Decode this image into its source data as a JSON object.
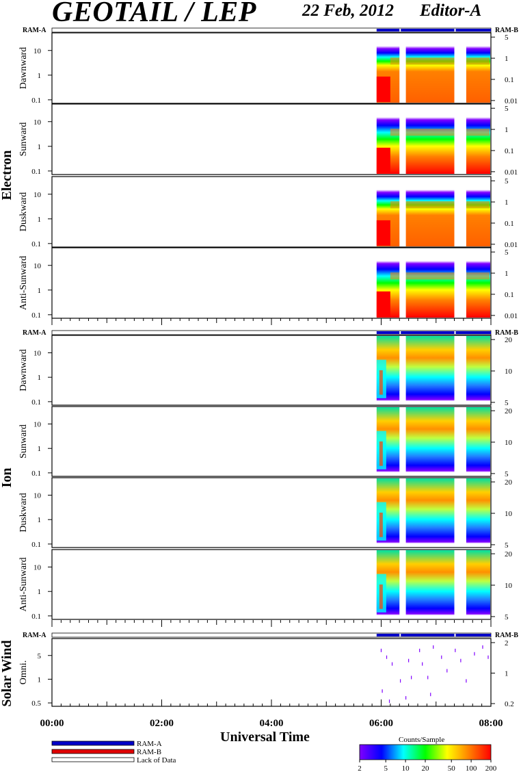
{
  "header": {
    "title": "GEOTAIL / LEP",
    "date": "22 Feb, 2012",
    "editor": "Editor-A"
  },
  "x_axis": {
    "label": "Universal Time",
    "ticks": [
      "00:00",
      "02:00",
      "04:00",
      "06:00",
      "08:00"
    ]
  },
  "mode_bar": {
    "left_label": "RAM-A",
    "right_label": "RAM-B"
  },
  "groups": [
    {
      "name": "Electron",
      "panels": [
        "Dawnward",
        "Sunward",
        "Duskward",
        "Anti-Sunward"
      ],
      "left_ticks": [
        "10",
        "1",
        "0.1"
      ],
      "right_ticks": [
        "5",
        "1",
        "0.1",
        "0.01"
      ]
    },
    {
      "name": "Ion",
      "panels": [
        "Dawnward",
        "Sunward",
        "Duskward",
        "Anti-Sunward"
      ],
      "left_ticks": [
        "10",
        "1",
        "0.1"
      ],
      "right_ticks": [
        "20",
        "10",
        "5"
      ]
    },
    {
      "name": "Solar Wind",
      "panels": [
        "Omni."
      ],
      "left_ticks": [
        "5",
        "1",
        "0.5"
      ],
      "right_ticks": [
        "2",
        "1",
        "0.2"
      ]
    }
  ],
  "legend": {
    "items": [
      {
        "label": "RAM-A",
        "color": "#0000c8"
      },
      {
        "label": "RAM-B",
        "color": "#e00000"
      },
      {
        "label": "Lack of Data",
        "color": "#ffffff"
      }
    ]
  },
  "colorbar": {
    "title": "Counts/Sample",
    "ticks": [
      "2",
      "5",
      "10",
      "20",
      "50",
      "100",
      "200"
    ]
  },
  "chart_data": {
    "type": "heatmap",
    "title": "GEOTAIL / LEP",
    "xlabel": "Universal Time",
    "x_range": [
      "00:00",
      "08:00"
    ],
    "data_start": "05:55",
    "data_gaps": [
      "06:20",
      "06:27",
      "07:20",
      "07:33"
    ],
    "electron_levels": [
      {
        "from": "05:55",
        "to": "06:10",
        "low_energy_level": "high",
        "level": 200
      },
      {
        "from": "06:10",
        "to": "08:00",
        "low_energy_level": "medium-high",
        "level": 60
      }
    ],
    "ion_levels": [
      {
        "from": "05:55",
        "to": "06:10",
        "peak_energy_level": "low",
        "level": 60
      },
      {
        "from": "06:10",
        "to": "08:00",
        "peak_energy_level": "high",
        "level": 50
      }
    ],
    "colorscale": {
      "min": 2,
      "max": 200,
      "scale": "log",
      "colors": [
        "#8000ff",
        "#0000ff",
        "#00ffff",
        "#00ff00",
        "#ffff00",
        "#ff8000",
        "#ff0000"
      ]
    }
  }
}
